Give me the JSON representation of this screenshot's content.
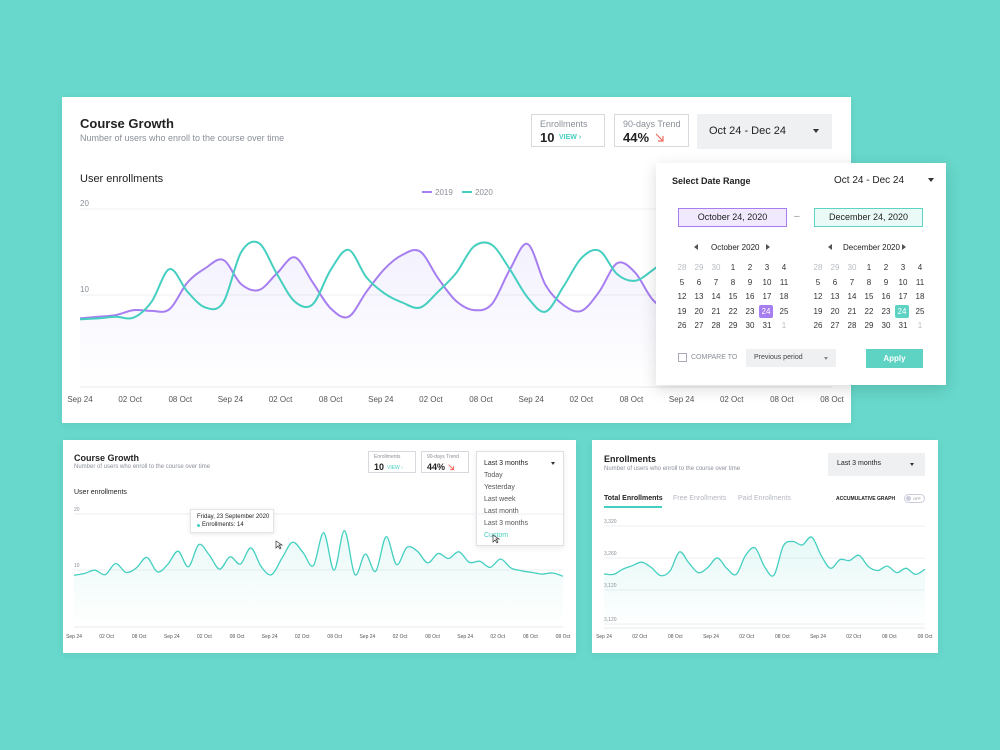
{
  "colors": {
    "purple": "#a77ef0",
    "teal": "#44cfc0",
    "bg": "#67d8cb",
    "down": "#ef6a5c"
  },
  "main": {
    "title": "Course Growth",
    "subtitle": "Number of users who enroll to the course over time",
    "enroll_label": "Enrollments",
    "enroll_value": "10",
    "view_link": "VIEW ›",
    "trend_label": "90-days Trend",
    "trend_value": "44%",
    "trend_icon": "arrow-down-right-icon",
    "range": "Oct 24 - Dec 24",
    "section_title": "User enrollments",
    "legend": [
      "2019",
      "2020"
    ],
    "y_ticks": [
      "20",
      "10"
    ],
    "x_ticks": [
      "Sep 24",
      "02 Oct",
      "08 Oct",
      "Sep 24",
      "02 Oct",
      "08 Oct",
      "Sep 24",
      "02 Oct",
      "08 Oct",
      "Sep 24",
      "02 Oct",
      "08 Oct",
      "Sep 24",
      "02 Oct",
      "08 Oct",
      "08 Oct"
    ]
  },
  "date_popup": {
    "title": "Select Date Range",
    "range": "Oct 24 - Dec 24",
    "start": "October 24, 2020",
    "end": "December 24, 2020",
    "dash": "–",
    "cal1_title": "October 2020",
    "cal2_title": "December 2020",
    "cal1_rows": [
      [
        "28",
        "29",
        "30",
        "1",
        "2",
        "3",
        "4"
      ],
      [
        "5",
        "6",
        "7",
        "8",
        "9",
        "10",
        "11"
      ],
      [
        "12",
        "13",
        "14",
        "15",
        "16",
        "17",
        "18"
      ],
      [
        "19",
        "20",
        "21",
        "22",
        "23",
        "24",
        "25"
      ],
      [
        "26",
        "27",
        "28",
        "29",
        "30",
        "31",
        "1"
      ]
    ],
    "cal2_rows": [
      [
        "28",
        "29",
        "30",
        "1",
        "2",
        "3",
        "4"
      ],
      [
        "5",
        "6",
        "7",
        "8",
        "9",
        "10",
        "11"
      ],
      [
        "12",
        "13",
        "14",
        "15",
        "16",
        "17",
        "18"
      ],
      [
        "19",
        "20",
        "21",
        "22",
        "23",
        "24",
        "25"
      ],
      [
        "26",
        "27",
        "28",
        "29",
        "30",
        "31",
        "1"
      ]
    ],
    "compare_label": "COMPARE TO",
    "compare_option": "Previous period",
    "apply": "Apply"
  },
  "small_left": {
    "title": "Course Growth",
    "subtitle": "Number of users who enroll to the course over time",
    "enroll_label": "Enrollments",
    "enroll_value": "10",
    "view_link": "VIEW ›",
    "trend_label": "90-days Trend",
    "trend_value": "44%",
    "range": "Last 3 months",
    "options": [
      "Today",
      "Yesterday",
      "Last week",
      "Last month",
      "Last 3 months",
      "Custom"
    ],
    "section_title": "User enrollments",
    "tooltip_date": "Friday, 23 September 2020",
    "tooltip_value": "Enrollments: 14",
    "y_ticks": [
      "20",
      "10"
    ],
    "x_ticks": [
      "Sep 24",
      "02 Oct",
      "08 Oct",
      "Sep 24",
      "02 Oct",
      "08 Oct",
      "Sep 24",
      "02 Oct",
      "08 Oct",
      "Sep 24",
      "02 Oct",
      "08 Oct",
      "Sep 24",
      "02 Oct",
      "08 Oct",
      "08 Oct"
    ]
  },
  "small_right": {
    "title": "Enrollments",
    "subtitle": "Number of users who enroll to the course over time",
    "range": "Last 3 months",
    "tabs": [
      "Total Enrollments",
      "Free Enrollments",
      "Paid Enrollments"
    ],
    "accum_label": "ACCUMULATIVE GRAPH",
    "toggle_label": "OFF",
    "y_ticks": [
      "3,320",
      "3,260",
      "3,120",
      "3,120"
    ],
    "x_ticks": [
      "Sep 24",
      "02 Oct",
      "08 Oct",
      "Sep 24",
      "02 Oct",
      "08 Oct",
      "Sep 24",
      "02 Oct",
      "08 Oct",
      "08 Oct"
    ]
  },
  "chart_data": [
    {
      "type": "line",
      "title": "User enrollments",
      "ylim": [
        0,
        22
      ],
      "series": [
        {
          "name": "2019",
          "values": [
            8.2,
            8.4,
            8.6,
            9.2,
            9.1,
            9.3,
            12.5,
            14.2,
            15.2,
            12.3,
            11.6,
            13.6,
            15.5,
            12.5,
            9.4,
            8.4,
            11.4,
            14.1,
            15.8,
            16.2,
            13.0,
            10.3,
            9.2,
            9.9,
            14.0,
            17.1,
            12.2,
            9.8,
            9.1,
            11.4,
            14.8,
            13.7,
            10.4,
            9.3,
            10.9,
            13.6,
            11.0,
            9.3,
            8.8,
            13.8,
            15.4,
            16.1,
            15.6
          ]
        },
        {
          "name": "2020",
          "values": [
            8.1,
            8.2,
            8.4,
            8.3,
            10.2,
            14.1,
            11.4,
            9.5,
            10.1,
            16.1,
            17.2,
            13.5,
            10.2,
            9.9,
            14.0,
            16.4,
            13.1,
            11.2,
            10.1,
            9.5,
            11.4,
            13.6,
            16.8,
            17.0,
            14.1,
            10.7,
            9.0,
            12.0,
            15.4,
            16.3,
            13.5,
            12.7,
            14.0,
            15.7,
            16.8,
            12.4,
            10.2,
            14.6,
            17.4,
            16.8,
            15.1,
            11.2,
            10.5
          ]
        }
      ]
    },
    {
      "type": "line",
      "title": "User enrollments",
      "ylim": [
        0,
        21
      ],
      "series": [
        {
          "name": "",
          "values": [
            9.3,
            9.6,
            10.2,
            9.4,
            11.4,
            9.8,
            10.6,
            12.5,
            9.9,
            11.2,
            13.6,
            10.8,
            14.8,
            12.9,
            10.4,
            12.6,
            11.3,
            14.2,
            10.8,
            9.4,
            12.4,
            15.2,
            13.4,
            11.0,
            16.9,
            10.2,
            17.3,
            9.4,
            13.1,
            10.0,
            16.2,
            11.2,
            14.3,
            13.6,
            11.5,
            13.2,
            12.3,
            13.5,
            11.6,
            11.8,
            10.7,
            12.2,
            10.6,
            10.1,
            9.8,
            9.5,
            9.7,
            9.1
          ]
        }
      ]
    },
    {
      "type": "line",
      "title": "Total Enrollments",
      "ylim": [
        3100,
        3345
      ],
      "series": [
        {
          "name": "",
          "values": [
            3225,
            3224,
            3236,
            3244,
            3252,
            3240,
            3221,
            3232,
            3276,
            3250,
            3228,
            3240,
            3262,
            3238,
            3224,
            3268,
            3285,
            3242,
            3222,
            3290,
            3300,
            3292,
            3310,
            3268,
            3238,
            3258,
            3256,
            3268,
            3242,
            3233,
            3243,
            3228,
            3238,
            3224,
            3236
          ]
        }
      ]
    }
  ]
}
